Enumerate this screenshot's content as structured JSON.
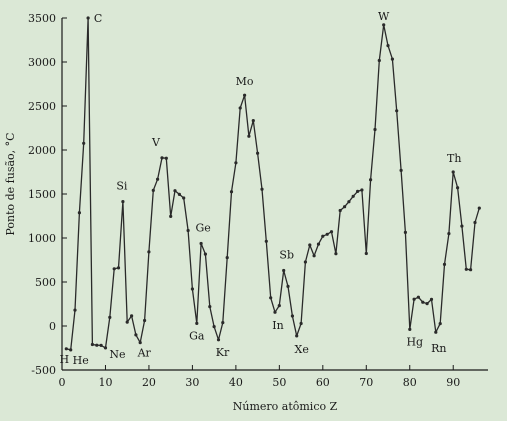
{
  "chart_data": {
    "type": "line",
    "title": "",
    "xlabel": "Número atômico Z",
    "ylabel": "Ponto de fusão, °C",
    "xlim": [
      0,
      98
    ],
    "ylim": [
      -500,
      3500
    ],
    "xticks": [
      0,
      10,
      20,
      30,
      40,
      50,
      60,
      70,
      80,
      90
    ],
    "yticks": [
      -500,
      0,
      500,
      1000,
      1500,
      2000,
      2500,
      3000,
      3500
    ],
    "grid": false,
    "series": [
      {
        "name": "",
        "points": [
          [
            1,
            -259
          ],
          [
            2,
            -272
          ],
          [
            3,
            181
          ],
          [
            4,
            1287
          ],
          [
            5,
            2076
          ],
          [
            6,
            3500
          ],
          [
            7,
            -210
          ],
          [
            8,
            -218
          ],
          [
            9,
            -220
          ],
          [
            10,
            -249
          ],
          [
            11,
            98
          ],
          [
            12,
            650
          ],
          [
            13,
            660
          ],
          [
            14,
            1414
          ],
          [
            15,
            44
          ],
          [
            16,
            115
          ],
          [
            17,
            -101
          ],
          [
            18,
            -189
          ],
          [
            19,
            63
          ],
          [
            20,
            842
          ],
          [
            21,
            1541
          ],
          [
            22,
            1668
          ],
          [
            23,
            1910
          ],
          [
            24,
            1907
          ],
          [
            25,
            1246
          ],
          [
            26,
            1538
          ],
          [
            27,
            1495
          ],
          [
            28,
            1455
          ],
          [
            29,
            1085
          ],
          [
            30,
            420
          ],
          [
            31,
            30
          ],
          [
            32,
            938
          ],
          [
            33,
            817
          ],
          [
            34,
            221
          ],
          [
            35,
            -7
          ],
          [
            36,
            -157
          ],
          [
            37,
            39
          ],
          [
            38,
            777
          ],
          [
            39,
            1526
          ],
          [
            40,
            1855
          ],
          [
            41,
            2477
          ],
          [
            42,
            2623
          ],
          [
            43,
            2157
          ],
          [
            44,
            2334
          ],
          [
            45,
            1964
          ],
          [
            46,
            1555
          ],
          [
            47,
            962
          ],
          [
            48,
            321
          ],
          [
            49,
            157
          ],
          [
            50,
            232
          ],
          [
            51,
            631
          ],
          [
            52,
            450
          ],
          [
            53,
            114
          ],
          [
            54,
            -112
          ],
          [
            55,
            28
          ],
          [
            56,
            727
          ],
          [
            57,
            920
          ],
          [
            58,
            798
          ],
          [
            59,
            931
          ],
          [
            60,
            1021
          ],
          [
            61,
            1042
          ],
          [
            62,
            1072
          ],
          [
            63,
            822
          ],
          [
            64,
            1313
          ],
          [
            65,
            1356
          ],
          [
            66,
            1412
          ],
          [
            67,
            1474
          ],
          [
            68,
            1529
          ],
          [
            69,
            1545
          ],
          [
            70,
            824
          ],
          [
            71,
            1663
          ],
          [
            72,
            2233
          ],
          [
            73,
            3017
          ],
          [
            74,
            3422
          ],
          [
            75,
            3186
          ],
          [
            76,
            3033
          ],
          [
            77,
            2446
          ],
          [
            78,
            1768
          ],
          [
            79,
            1064
          ],
          [
            80,
            -39
          ],
          [
            81,
            304
          ],
          [
            82,
            327
          ],
          [
            83,
            271
          ],
          [
            84,
            254
          ],
          [
            85,
            302
          ],
          [
            86,
            -71
          ],
          [
            87,
            27
          ],
          [
            88,
            700
          ],
          [
            89,
            1050
          ],
          [
            90,
            1750
          ],
          [
            91,
            1572
          ],
          [
            92,
            1135
          ],
          [
            93,
            644
          ],
          [
            94,
            640
          ],
          [
            95,
            1176
          ],
          [
            96,
            1340
          ]
        ]
      }
    ],
    "annotations": [
      {
        "text": "H",
        "x": 1,
        "y": -259
      },
      {
        "text": "He",
        "x": 2,
        "y": -272
      },
      {
        "text": "C",
        "x": 6,
        "y": 3500
      },
      {
        "text": "Ne",
        "x": 10,
        "y": -249
      },
      {
        "text": "Si",
        "x": 14,
        "y": 1414
      },
      {
        "text": "Ar",
        "x": 18,
        "y": -189
      },
      {
        "text": "V",
        "x": 23,
        "y": 1910
      },
      {
        "text": "Ga",
        "x": 31,
        "y": 30
      },
      {
        "text": "Ge",
        "x": 32,
        "y": 938
      },
      {
        "text": "Kr",
        "x": 36,
        "y": -157
      },
      {
        "text": "Mo",
        "x": 42,
        "y": 2623
      },
      {
        "text": "In",
        "x": 49,
        "y": 157
      },
      {
        "text": "Sb",
        "x": 51,
        "y": 631
      },
      {
        "text": "Xe",
        "x": 54,
        "y": -112
      },
      {
        "text": "W",
        "x": 74,
        "y": 3422
      },
      {
        "text": "Hg",
        "x": 80,
        "y": -39
      },
      {
        "text": "Rn",
        "x": 86,
        "y": -71
      },
      {
        "text": "Th",
        "x": 90,
        "y": 1750
      }
    ],
    "colors": {
      "background": "#dbe8d6",
      "line": "#2a2a2a",
      "axis": "#1a1a1a"
    }
  }
}
